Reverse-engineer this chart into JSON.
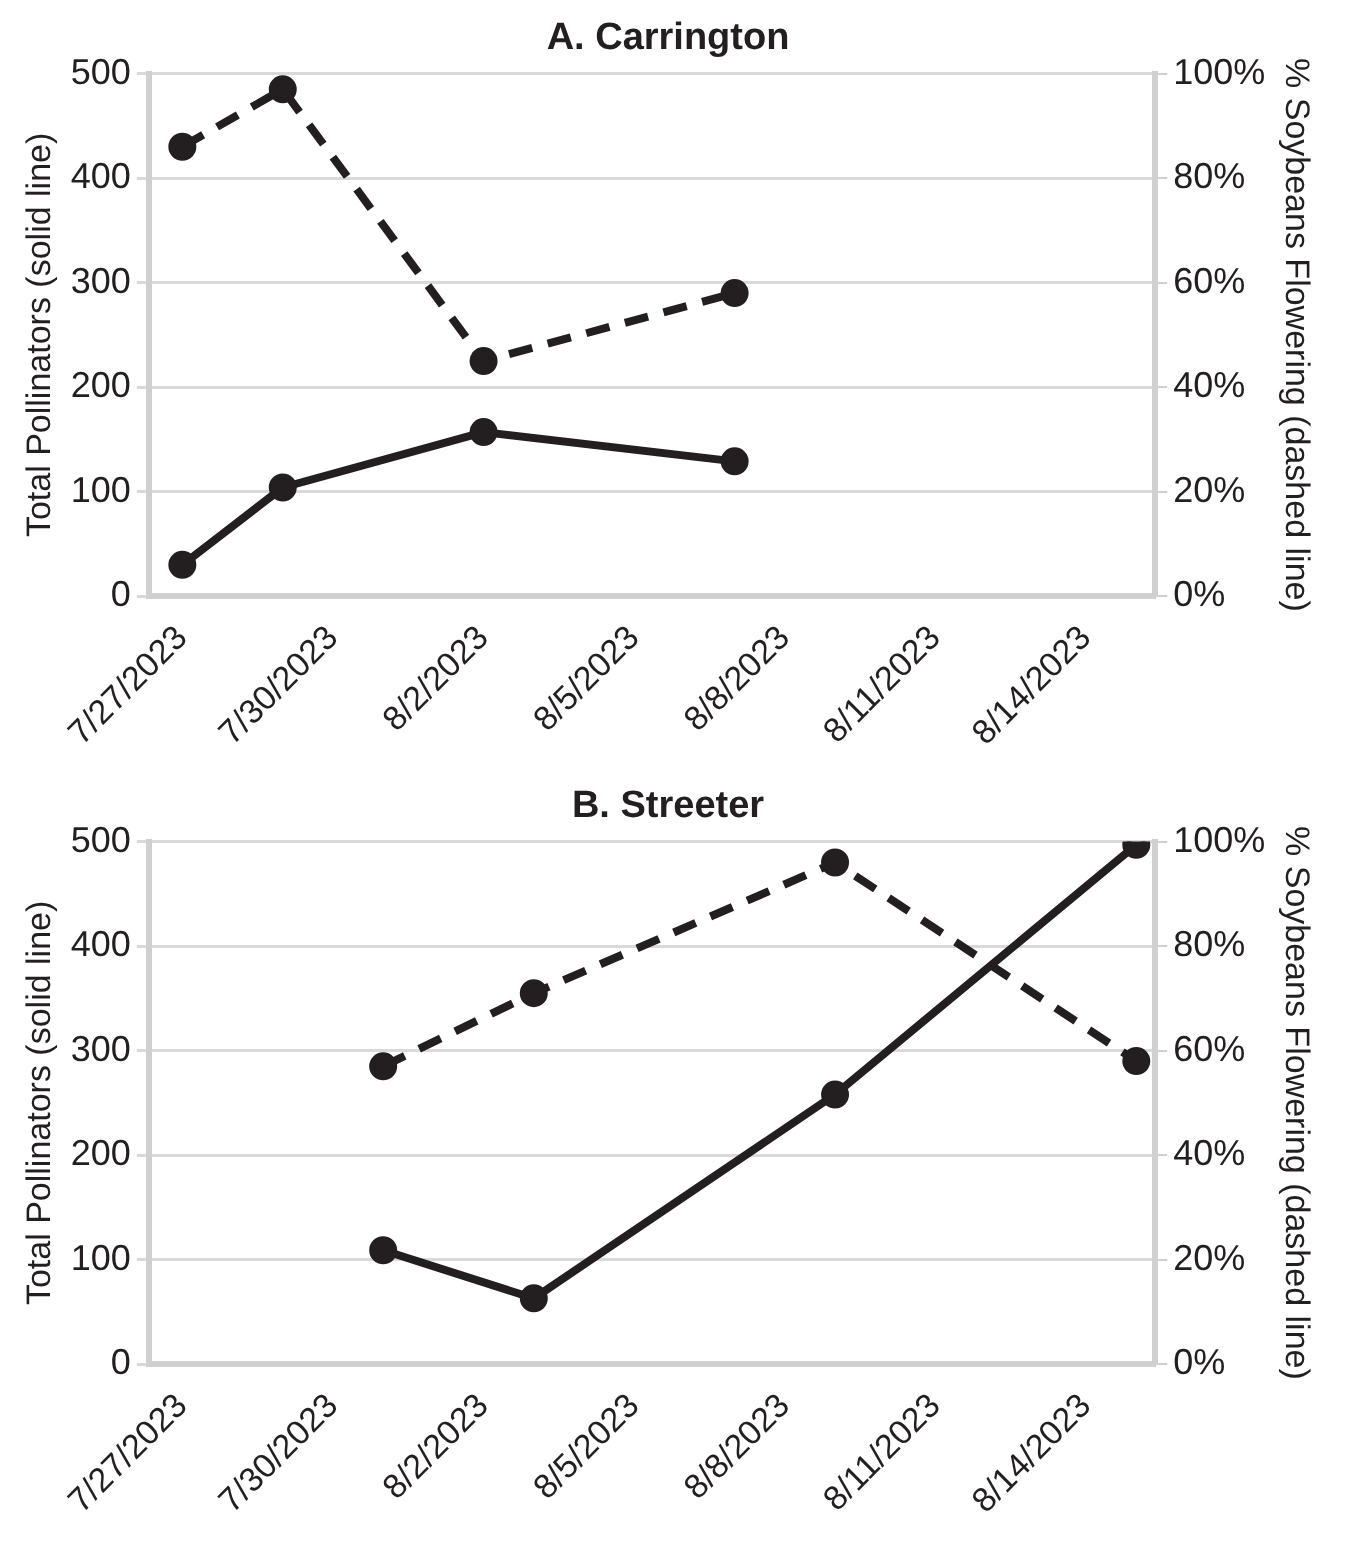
{
  "chart_data": [
    {
      "type": "line",
      "title": "A. Carrington",
      "ylabel": "Total Pollinators (solid line)",
      "y2label": "% Soybeans Flowering (dashed line)",
      "xlim": [
        "2023-07-26T08:00",
        "2023-08-15T09:00"
      ],
      "xticks": [
        {
          "value": "2023-07-27",
          "label": "7/27/2023"
        },
        {
          "value": "2023-07-30",
          "label": "7/30/2023"
        },
        {
          "value": "2023-08-02",
          "label": "8/2/2023"
        },
        {
          "value": "2023-08-05",
          "label": "8/5/2023"
        },
        {
          "value": "2023-08-08",
          "label": "8/8/2023"
        },
        {
          "value": "2023-08-11",
          "label": "8/11/2023"
        },
        {
          "value": "2023-08-14",
          "label": "8/14/2023"
        }
      ],
      "ylim": [
        0,
        500
      ],
      "yticks": [
        0,
        100,
        200,
        300,
        400,
        500
      ],
      "y2lim": [
        0,
        100
      ],
      "y2ticks": [
        {
          "value": 0,
          "label": "0%"
        },
        {
          "value": 20,
          "label": "20%"
        },
        {
          "value": 40,
          "label": "40%"
        },
        {
          "value": 60,
          "label": "60%"
        },
        {
          "value": 80,
          "label": "80%"
        },
        {
          "value": 100,
          "label": "100%"
        }
      ],
      "grid": "y",
      "marker": "circle",
      "legend": false,
      "series": [
        {
          "color": "#231f20",
          "line_style": "solid",
          "x": [
            "2023-07-27",
            "2023-07-29",
            "2023-08-02",
            "2023-08-07"
          ],
          "values": [
            30,
            104,
            157,
            129
          ]
        },
        {
          "color": "#231f20",
          "line_style": "dashed",
          "axis": "y2",
          "x": [
            "2023-07-27",
            "2023-07-29",
            "2023-08-02",
            "2023-08-07"
          ],
          "values": [
            86,
            97,
            45,
            58
          ]
        }
      ]
    },
    {
      "type": "line",
      "title": "B. Streeter",
      "ylabel": "Total Pollinators (solid line)",
      "y2label": "% Soybeans Flowering (dashed line)",
      "xlim": [
        "2023-07-26T08:00",
        "2023-08-15T09:00"
      ],
      "xticks": [
        {
          "value": "2023-07-27",
          "label": "7/27/2023"
        },
        {
          "value": "2023-07-30",
          "label": "7/30/2023"
        },
        {
          "value": "2023-08-02",
          "label": "8/2/2023"
        },
        {
          "value": "2023-08-05",
          "label": "8/5/2023"
        },
        {
          "value": "2023-08-08",
          "label": "8/8/2023"
        },
        {
          "value": "2023-08-11",
          "label": "8/11/2023"
        },
        {
          "value": "2023-08-14",
          "label": "8/14/2023"
        }
      ],
      "ylim": [
        0,
        500
      ],
      "yticks": [
        0,
        100,
        200,
        300,
        400,
        500
      ],
      "y2lim": [
        0,
        100
      ],
      "y2ticks": [
        {
          "value": 0,
          "label": "0%"
        },
        {
          "value": 20,
          "label": "20%"
        },
        {
          "value": 40,
          "label": "40%"
        },
        {
          "value": 60,
          "label": "60%"
        },
        {
          "value": 80,
          "label": "80%"
        },
        {
          "value": 100,
          "label": "100%"
        }
      ],
      "grid": "y",
      "marker": "circle",
      "legend": false,
      "series": [
        {
          "color": "#231f20",
          "line_style": "solid",
          "x": [
            "2023-07-31",
            "2023-08-03",
            "2023-08-09",
            "2023-08-15"
          ],
          "values": [
            109,
            63,
            258,
            497
          ]
        },
        {
          "color": "#231f20",
          "line_style": "dashed",
          "axis": "y2",
          "x": [
            "2023-07-31",
            "2023-08-03",
            "2023-08-09",
            "2023-08-15"
          ],
          "values": [
            57,
            71,
            96,
            58
          ]
        }
      ]
    }
  ]
}
